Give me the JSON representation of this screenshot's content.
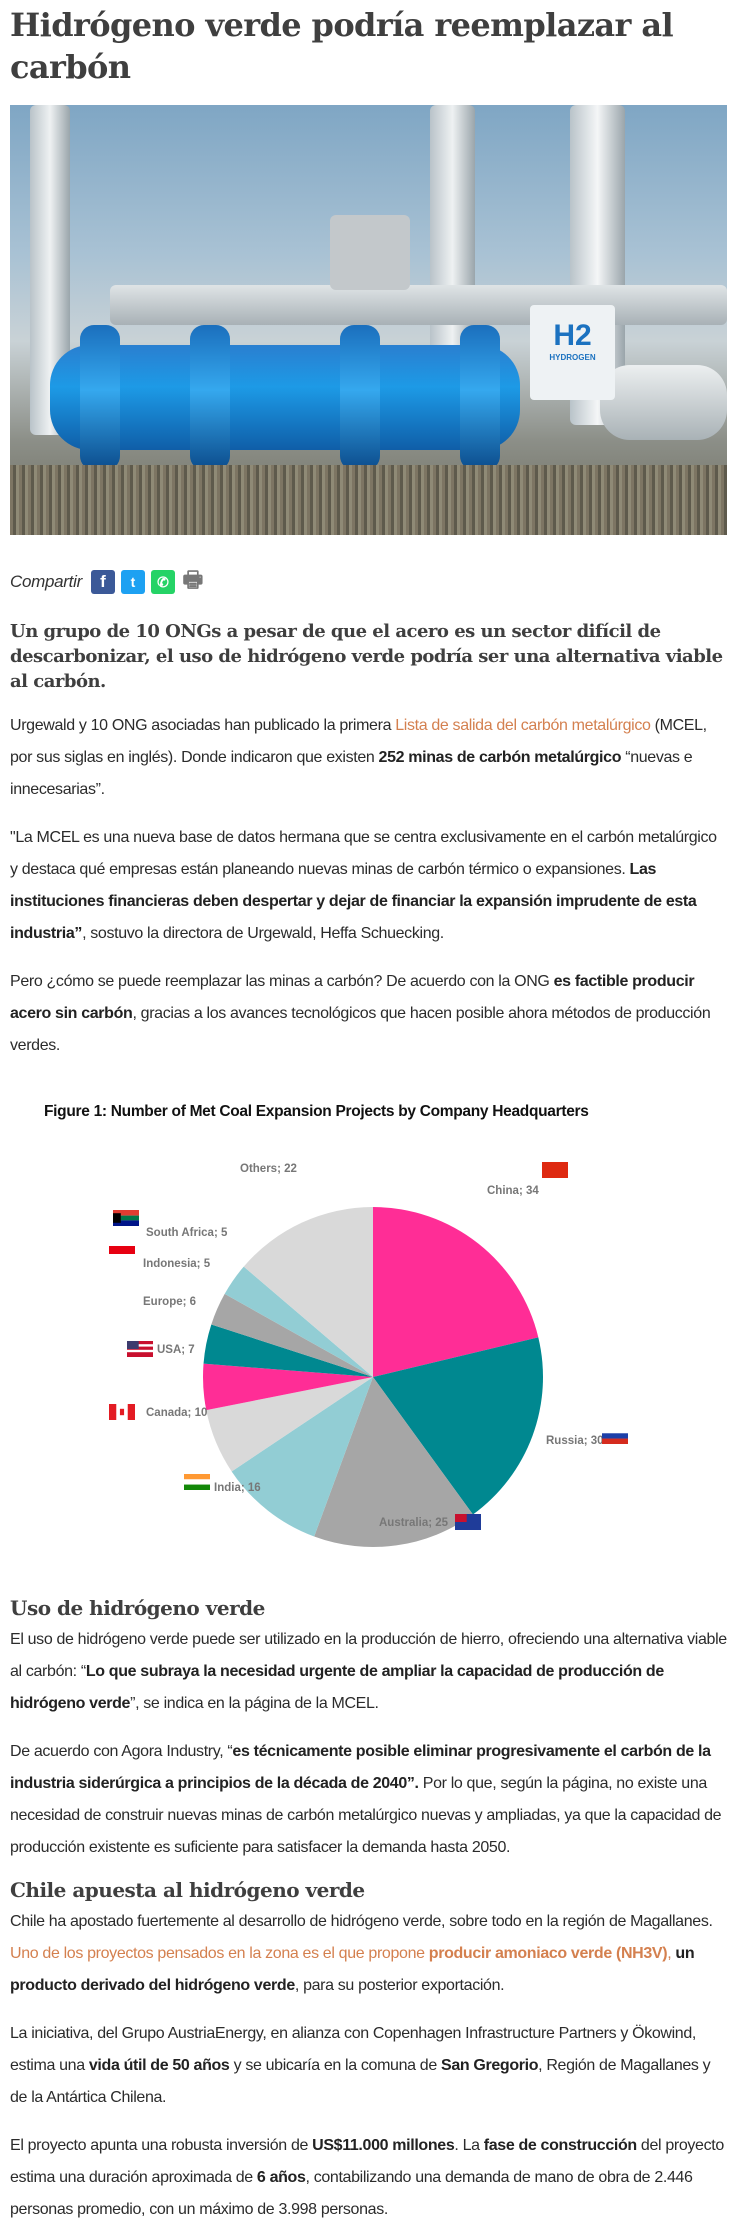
{
  "article": {
    "title": "Hidrógeno verde podría reemplazar al carbón",
    "share": {
      "label": "Compartir",
      "icons": [
        "facebook-icon",
        "twitter-icon",
        "whatsapp-icon",
        "print-icon"
      ],
      "colors": {
        "facebook": "#3b5998",
        "twitter": "#1da1f2",
        "whatsapp": "#25d366",
        "print": "#777777"
      }
    },
    "lead": "Un grupo de 10 ONGs a pesar de que el acero es un sector difícil de descarbonizar, el uso de hidrógeno verde podría ser una alternativa viable al carbón.",
    "link_color": "#d4804f",
    "paragraphs_1": [
      [
        {
          "t": "Urgewald y 10 ONG asociadas han publicado la primera "
        },
        {
          "t": "Lista de salida del carbón metalúrgico",
          "s": "a"
        },
        {
          "t": " (MCEL, por sus siglas en inglés). Donde indicaron que existen "
        },
        {
          "t": "252 minas de carbón metalúrgico",
          "s": "b"
        },
        {
          "t": " “nuevas e innecesarias”."
        }
      ],
      [
        {
          "t": "\"La MCEL es una nueva base de datos hermana que se centra exclusivamente en el carbón metalúrgico y destaca qué empresas están planeando nuevas minas de carbón térmico o expansiones. "
        },
        {
          "t": "Las instituciones financieras deben despertar y dejar de financiar la expansión imprudente de esta industria”",
          "s": "b"
        },
        {
          "t": ", sostuvo la directora de Urgewald, Heffa Schuecking."
        }
      ],
      [
        {
          "t": "Pero ¿cómo se puede reemplazar las minas a carbón? De acuerdo con la ONG "
        },
        {
          "t": "es factible producir acero sin carbón",
          "s": "b"
        },
        {
          "t": ", gracias a los avances tecnológicos que hacen posible ahora métodos de producción verdes."
        }
      ]
    ],
    "section_1": {
      "heading": "Uso de hidrógeno verde",
      "paragraphs": [
        [
          {
            "t": "El uso de hidrógeno verde puede ser utilizado en la producción de hierro, ofreciendo una alternativa viable al carbón: “"
          },
          {
            "t": "Lo que subraya la necesidad urgente de ampliar la capacidad de producción de hidrógeno verde",
            "s": "b"
          },
          {
            "t": "”, se indica en la página de la MCEL."
          }
        ],
        [
          {
            "t": " De acuerdo con  Agora Industry, “"
          },
          {
            "t": "es técnicamente posible eliminar progresivamente el carbón de la industria siderúrgica a principios de la década de 2040”.",
            "s": "b"
          },
          {
            "t": " Por lo que, según la página, no existe una necesidad de construir nuevas minas de carbón metalúrgico nuevas y ampliadas, ya que la capacidad de producción existente es suficiente para satisfacer la demanda hasta 2050."
          }
        ]
      ]
    },
    "section_2": {
      "heading": "Chile apuesta al hidrógeno verde",
      "paragraphs": [
        [
          {
            "t": "Chile ha apostado fuertemente al desarrollo de hidrógeno verde, sobre todo en la región de Magallanes. "
          },
          {
            "t": "Uno de los proyectos pensados en la zona es el que propone ",
            "s": "a"
          },
          {
            "t": "producir amoniaco verde (NH3V)",
            "s": "ab"
          },
          {
            "t": ", ",
            "s": "a"
          },
          {
            "t": "un producto derivado del hidrógeno verde",
            "s": "b"
          },
          {
            "t": ", para su posterior exportación."
          }
        ],
        [
          {
            "t": "La iniciativa, del Grupo AustriaEnergy, en alianza con Copenhagen Infrastructure Partners y Ökowind, estima una "
          },
          {
            "t": "vida útil de 50 años",
            "s": "b"
          },
          {
            "t": " y se ubicaría en la comuna de "
          },
          {
            "t": "San Gregorio",
            "s": "b"
          },
          {
            "t": ", Región de Magallanes y de la Antártica Chilena."
          }
        ],
        [
          {
            "t": "El proyecto apunta una robusta inversión de "
          },
          {
            "t": "US$11.000 millones",
            "s": "b"
          },
          {
            "t": ". La "
          },
          {
            "t": "fase de construcción",
            "s": "b"
          },
          {
            "t": " del proyecto estima una duración aproximada de "
          },
          {
            "t": "6 años",
            "s": "b"
          },
          {
            "t": ", contabilizando una demanda de mano de obra de 2.446 personas promedio, con un máximo de 3.998 personas."
          }
        ]
      ]
    },
    "hero_image_text": {
      "badge": "H2",
      "caption": "HYDROGEN"
    }
  },
  "chart_data": {
    "type": "pie",
    "title": "Figure 1: Number of Met Coal Expansion Projects by Company Headquarters",
    "categories": [
      "China",
      "Russia",
      "Australia",
      "India",
      "Canada",
      "USA",
      "Europe",
      "Indonesia",
      "South Africa",
      "Others"
    ],
    "values": [
      34,
      30,
      25,
      16,
      10,
      7,
      6,
      5,
      5,
      22
    ],
    "labels": [
      "China; 34",
      "Russia; 30",
      "Australia; 25",
      "India; 16",
      "Canada; 10",
      "USA; 7",
      "Europe; 6",
      "Indonesia; 5",
      "South Africa; 5",
      "Others; 22"
    ],
    "colors": [
      "#ff2d96",
      "#008890",
      "#a6a6a6",
      "#92cdd4",
      "#d9d9d9",
      "#ff2d96",
      "#008890",
      "#a6a6a6",
      "#92cdd4",
      "#d9d9d9"
    ],
    "start": "12 o'clock, clockwise",
    "flags": {
      "China": "china-flag",
      "Russia": "russia-flag",
      "Australia": "australia-flag",
      "India": "india-flag",
      "Canada": "canada-flag",
      "USA": "usa-flag",
      "Indonesia": "indonesia-flag",
      "South Africa": "south-africa-flag"
    }
  }
}
